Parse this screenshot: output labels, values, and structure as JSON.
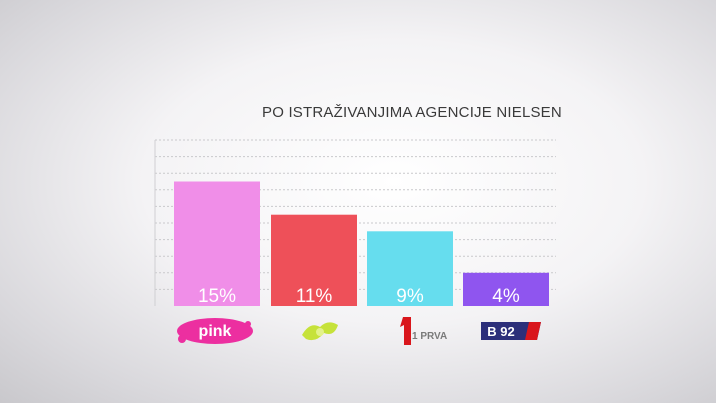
{
  "chart_data": {
    "type": "bar",
    "title": "PO ISTRAŽIVANJIMA AGENCIJE NIELSEN",
    "categories": [
      "pink",
      "",
      "1 PRVA",
      "B 92"
    ],
    "values": [
      15,
      11,
      9,
      4
    ],
    "value_labels": [
      "15%",
      "11%",
      "9%",
      "4%"
    ],
    "colors": [
      "#f08ee8",
      "#ee5059",
      "#66ddee",
      "#8f55ef"
    ],
    "ylim": [
      0,
      20
    ],
    "grid": true,
    "xlabel": "",
    "ylabel": ""
  },
  "logos": {
    "pink": "pink",
    "prva": "1 PRVA",
    "b92": "B 92"
  }
}
